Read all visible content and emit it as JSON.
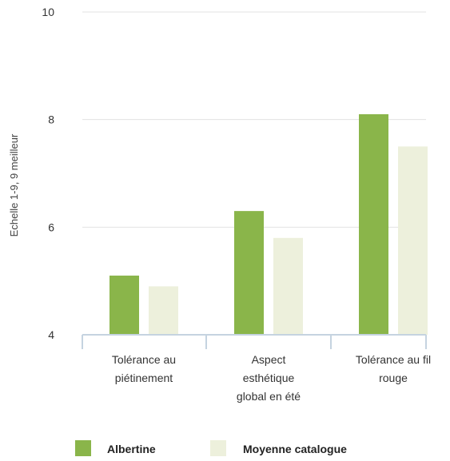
{
  "chart_data": {
    "type": "bar",
    "title": "",
    "ylabel": "Echelle 1-9, 9 meilleur",
    "xlabel": "",
    "ylim": [
      4,
      10
    ],
    "yticks": [
      4,
      6,
      8,
      10
    ],
    "grid": true,
    "legend_position": "bottom",
    "categories": [
      [
        "Tolérance au",
        "piétinement"
      ],
      [
        "Aspect",
        "esthétique",
        "global en été"
      ],
      [
        "Tolérance au fil",
        "rouge"
      ]
    ],
    "series": [
      {
        "name": "Albertine",
        "color": "#8ab54a",
        "values": [
          5.1,
          6.3,
          8.1
        ]
      },
      {
        "name": "Moyenne catalogue",
        "color": "#edf0dc",
        "values": [
          4.9,
          5.8,
          7.5
        ]
      }
    ]
  }
}
